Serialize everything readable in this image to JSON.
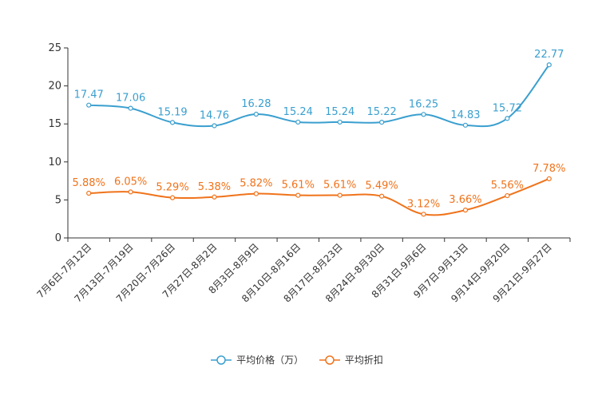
{
  "chart_data": {
    "type": "line",
    "title": "",
    "xlabel": "",
    "ylabel": "",
    "ylim": [
      0,
      25
    ],
    "yticks": [
      0,
      5,
      10,
      15,
      20,
      25
    ],
    "grid": false,
    "legend_position": "bottom-center",
    "categories": [
      "7月6日-7月12日",
      "7月13日-7月19日",
      "7月20日-7月26日",
      "7月27日-8月2日",
      "8月3日-8月9日",
      "8月10日-8月16日",
      "8月17日-8月23日",
      "8月24日-8月30日",
      "8月31日-9月6日",
      "9月7日-9月13日",
      "9月14日-9月20日",
      "9月21日-9月27日"
    ],
    "series": [
      {
        "name": "平均价格（万）",
        "color": "#3a9fcf",
        "values": [
          17.47,
          17.06,
          15.19,
          14.76,
          16.28,
          15.24,
          15.24,
          15.22,
          16.25,
          14.83,
          15.72,
          22.77
        ],
        "labels": [
          "17.47",
          "17.06",
          "15.19",
          "14.76",
          "16.28",
          "15.24",
          "15.24",
          "15.22",
          "16.25",
          "14.83",
          "15.72",
          "22.77"
        ]
      },
      {
        "name": "平均折扣",
        "color": "#f0731b",
        "values": [
          5.88,
          6.05,
          5.29,
          5.38,
          5.82,
          5.61,
          5.61,
          5.49,
          3.12,
          3.66,
          5.56,
          7.78
        ],
        "labels": [
          "5.88%",
          "6.05%",
          "5.29%",
          "5.38%",
          "5.82%",
          "5.61%",
          "5.61%",
          "5.49%",
          "3.12%",
          "3.66%",
          "5.56%",
          "7.78%"
        ]
      }
    ]
  }
}
